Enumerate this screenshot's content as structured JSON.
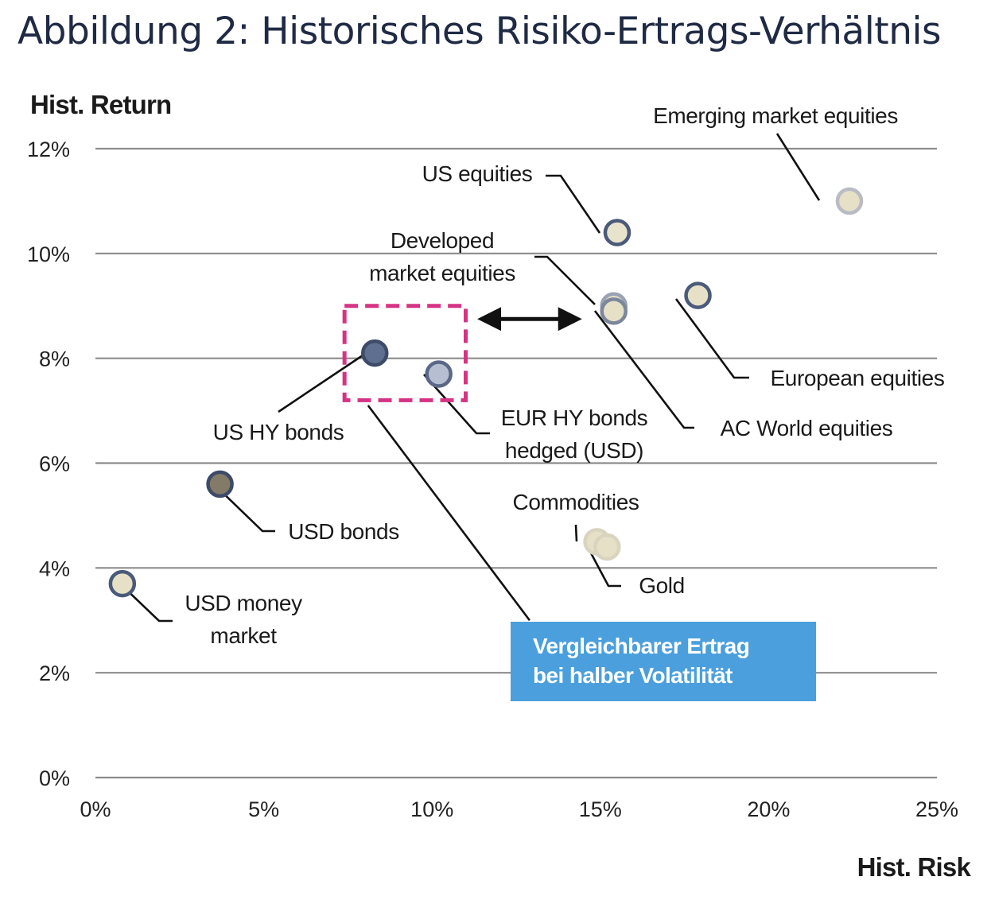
{
  "title": "Abbildung 2: Historisches Risiko-Ertrags-Verhältnis",
  "callout": {
    "line1": "Vergleichbarer Ertrag",
    "line2": "bei halber Volatilität"
  },
  "chart_data": {
    "type": "scatter",
    "xlabel": "Hist. Risk",
    "ylabel": "Hist. Return",
    "xlim": [
      0,
      25
    ],
    "ylim": [
      0,
      12
    ],
    "x_ticks": [
      0,
      5,
      10,
      15,
      20,
      25
    ],
    "y_ticks": [
      0,
      2,
      4,
      6,
      8,
      10,
      12
    ],
    "x_tick_labels": [
      "0%",
      "5%",
      "10%",
      "15%",
      "20%",
      "25%"
    ],
    "y_tick_labels": [
      "0%",
      "2%",
      "4%",
      "6%",
      "8%",
      "10%",
      "12%"
    ],
    "grid": "horizontal",
    "points": [
      {
        "label": [
          "Emerging market equities"
        ],
        "x": 22.4,
        "y": 11.0,
        "color": "#e6e0c6",
        "stroke": "#b9bcc4"
      },
      {
        "label": [
          "US equities"
        ],
        "x": 15.5,
        "y": 10.4,
        "color": "#e8e3cc",
        "stroke": "#4a5a7a"
      },
      {
        "label": [
          "Developed",
          "market equities"
        ],
        "x": 15.4,
        "y": 9.0,
        "color": "#e6e0c6",
        "stroke": "#9aa3b4"
      },
      {
        "label": [
          "AC World equities"
        ],
        "x": 15.4,
        "y": 8.9,
        "color": "#e6e0c6",
        "stroke": "#7c879c"
      },
      {
        "label": [
          "European equities"
        ],
        "x": 17.9,
        "y": 9.2,
        "color": "#e6e0c6",
        "stroke": "#4a5a7a"
      },
      {
        "label": [
          "US HY bonds"
        ],
        "x": 8.3,
        "y": 8.1,
        "color": "#5f6f8f",
        "stroke": "#3d4b68"
      },
      {
        "label": [
          "EUR HY bonds",
          "hedged (USD)"
        ],
        "x": 10.2,
        "y": 7.7,
        "color": "#b5bfd1",
        "stroke": "#5a6786"
      },
      {
        "label": [
          "USD bonds"
        ],
        "x": 3.7,
        "y": 5.6,
        "color": "#847a68",
        "stroke": "#3d4b68"
      },
      {
        "label": [
          "Commodities"
        ],
        "x": 14.9,
        "y": 4.5,
        "color": "#e6e0c6",
        "stroke": "#d9d4bf"
      },
      {
        "label": [
          "Gold"
        ],
        "x": 15.2,
        "y": 4.4,
        "color": "#e6e0c6",
        "stroke": "#d9d4bf"
      },
      {
        "label": [
          "USD money",
          "market"
        ],
        "x": 0.8,
        "y": 3.7,
        "color": "#e6e0c6",
        "stroke": "#4a5a7a"
      }
    ]
  }
}
